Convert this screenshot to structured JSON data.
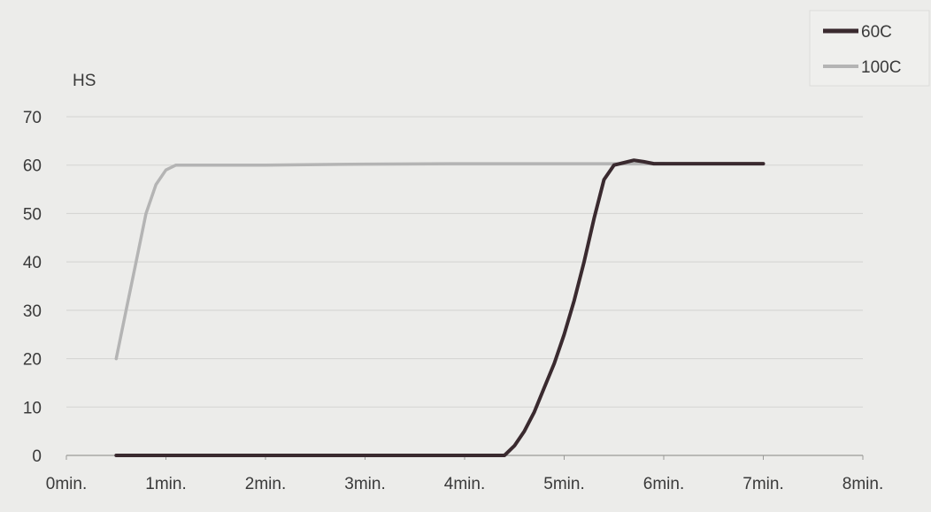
{
  "chart_data": {
    "type": "line",
    "title": "",
    "xlabel": "",
    "ylabel": "HS",
    "xlim": [
      0,
      8
    ],
    "ylim": [
      0,
      70
    ],
    "x_ticks": [
      0,
      1,
      2,
      3,
      4,
      5,
      6,
      7,
      8
    ],
    "x_tick_labels": [
      "0min.",
      "1min.",
      "2min.",
      "3min.",
      "4min.",
      "5min.",
      "6min.",
      "7min.",
      "8min."
    ],
    "y_ticks": [
      0,
      10,
      20,
      30,
      40,
      50,
      60,
      70
    ],
    "y_tick_labels": [
      "0",
      "10",
      "20",
      "30",
      "40",
      "50",
      "60",
      "70"
    ],
    "grid": true,
    "legend_position": "top-right",
    "series": [
      {
        "name": "60C",
        "color": "#3a2a2f",
        "x": [
          0.5,
          1.0,
          2.0,
          3.0,
          4.0,
          4.1,
          4.4,
          4.5,
          4.6,
          4.7,
          4.8,
          4.9,
          5.0,
          5.1,
          5.2,
          5.3,
          5.4,
          5.5,
          5.6,
          5.7,
          5.8,
          5.9,
          6.0,
          6.5,
          7.0
        ],
        "y": [
          0,
          0,
          0,
          0,
          0,
          0,
          0,
          2,
          5,
          9,
          14,
          19,
          25,
          32,
          40,
          49,
          57,
          60,
          60.5,
          61,
          60.7,
          60.3,
          60.3,
          60.3,
          60.3
        ]
      },
      {
        "name": "100C",
        "color": "#b4b4b4",
        "x": [
          0.5,
          0.6,
          0.7,
          0.8,
          0.9,
          1.0,
          1.1,
          1.3,
          2.0,
          3.0,
          4.0,
          5.0,
          5.5,
          6.0
        ],
        "y": [
          20,
          30,
          40,
          50,
          56,
          59,
          60,
          60,
          60,
          60.2,
          60.3,
          60.3,
          60.3,
          60.3
        ]
      }
    ]
  }
}
